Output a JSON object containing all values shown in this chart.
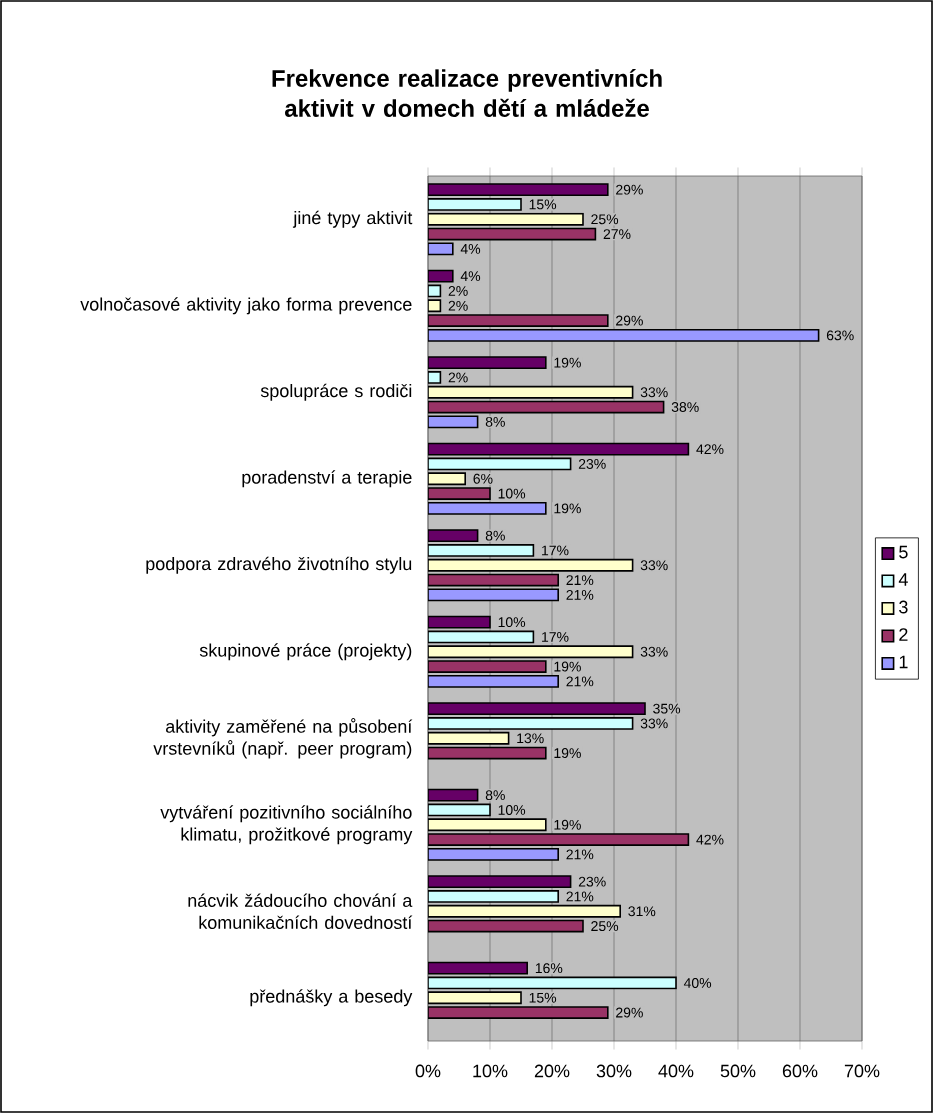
{
  "chart_data": {
    "type": "bar",
    "orientation": "horizontal",
    "title": "Frekvence realizace preventivních aktivit v domech dětí a mládeže",
    "categories": [
      "jiné typy aktivit",
      "volnočasové aktivity jako forma prevence",
      "spolupráce s rodiči",
      "poradenství a terapie",
      "podpora zdravého životního stylu",
      "skupinové práce (projekty)",
      "aktivity zaměřené na působení vrstevníků (např. peer program)",
      "vytváření pozitivního sociálního klimatu, prožitkové programy",
      "nácvik žádoucího chování a komunikačních dovedností",
      "přednášky a besedy"
    ],
    "series": [
      {
        "name": "5",
        "color": "#660066",
        "values": [
          29,
          4,
          19,
          42,
          8,
          10,
          35,
          8,
          23,
          16
        ],
        "value_labels": [
          "29%",
          "4%",
          "19%",
          "42%",
          "8%",
          "10%",
          "35%",
          "8%",
          "23%",
          "16%"
        ]
      },
      {
        "name": "4",
        "color": "#ccffff",
        "values": [
          15,
          2,
          2,
          23,
          17,
          17,
          33,
          10,
          21,
          40
        ],
        "value_labels": [
          "15%",
          "2%",
          "2%",
          "23%",
          "17%",
          "17%",
          "33%",
          "10%",
          "21%",
          "40%"
        ]
      },
      {
        "name": "3",
        "color": "#ffffcc",
        "values": [
          25,
          2,
          33,
          6,
          33,
          33,
          13,
          19,
          31,
          15
        ],
        "value_labels": [
          "25%",
          "2%",
          "33%",
          "6%",
          "33%",
          "33%",
          "13%",
          "19%",
          "31%",
          "15%"
        ]
      },
      {
        "name": "2",
        "color": "#993366",
        "values": [
          27,
          29,
          38,
          10,
          21,
          19,
          19,
          42,
          25,
          29
        ],
        "value_labels": [
          "27%",
          "29%",
          "38%",
          "10%",
          "21%",
          "19%",
          "19%",
          "42%",
          "25%",
          "29%"
        ]
      },
      {
        "name": "1",
        "color": "#9999ff",
        "values": [
          4,
          63,
          8,
          19,
          21,
          21,
          null,
          21,
          null,
          null
        ],
        "value_labels": [
          "4%",
          "63%",
          "8%",
          "19%",
          "21%",
          "21%",
          null,
          "21%",
          null,
          null
        ]
      }
    ],
    "xlim": [
      0,
      70
    ],
    "xticks": [
      {
        "value": 0,
        "label": "0%"
      },
      {
        "value": 10,
        "label": "10%"
      },
      {
        "value": 20,
        "label": "20%"
      },
      {
        "value": 30,
        "label": "30%"
      },
      {
        "value": 40,
        "label": "40%"
      },
      {
        "value": 50,
        "label": "50%"
      },
      {
        "value": 60,
        "label": "60%"
      },
      {
        "value": 70,
        "label": "70%"
      }
    ],
    "grid": "x",
    "legend": "right"
  }
}
